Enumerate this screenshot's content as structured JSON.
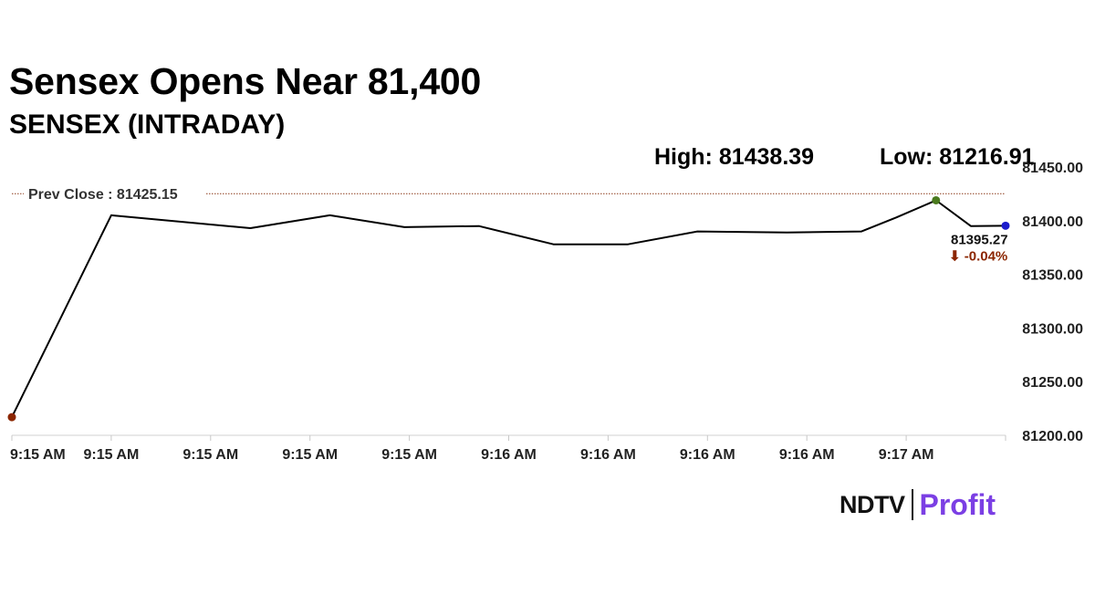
{
  "headline": "Sensex Opens Near 81,400",
  "subheadline": "SENSEX (INTRADAY)",
  "stats": {
    "high": "High: 81438.39",
    "low": "Low: 81216.91"
  },
  "colors": {
    "line": "#000000",
    "prev_close_line": "#8b3a1a",
    "open_marker": "#8b2500",
    "high_marker": "#4a7a1e",
    "last_marker": "#1c1ccc",
    "change_negative": "#8b2500",
    "brand_profit": "#7b3fe4"
  },
  "logo": {
    "ndtv": "NDTV",
    "profit": "Profit"
  },
  "chart_data": {
    "type": "line",
    "title": "SENSEX (INTRADAY)",
    "xlabel": "",
    "ylabel": "",
    "x_tick_labels": [
      "9:15 AM",
      "9:15 AM",
      "9:15 AM",
      "9:15 AM",
      "9:15 AM",
      "9:16 AM",
      "9:16 AM",
      "9:16 AM",
      "9:16 AM",
      "9:17 AM"
    ],
    "y_ticks": [
      "81450.00",
      "81400.00",
      "81350.00",
      "81300.00",
      "81250.00",
      "81200.00"
    ],
    "y_tick_values": [
      81450,
      81400,
      81350,
      81300,
      81250,
      81200
    ],
    "ylim": [
      81200,
      81450
    ],
    "grid": false,
    "prev_close": {
      "label": "Prev Close : 81425.15",
      "value": 81425.15
    },
    "series": [
      {
        "points": [
          {
            "x": 0.0,
            "y": 81216.91
          },
          {
            "x": 1.0,
            "y": 81405
          },
          {
            "x": 2.4,
            "y": 81393
          },
          {
            "x": 3.2,
            "y": 81405
          },
          {
            "x": 3.95,
            "y": 81394
          },
          {
            "x": 4.7,
            "y": 81395
          },
          {
            "x": 5.45,
            "y": 81378
          },
          {
            "x": 6.2,
            "y": 81378
          },
          {
            "x": 6.9,
            "y": 81390
          },
          {
            "x": 7.8,
            "y": 81389
          },
          {
            "x": 8.55,
            "y": 81390
          },
          {
            "x": 8.9,
            "y": 81403
          },
          {
            "x": 9.3,
            "y": 81419
          },
          {
            "x": 9.65,
            "y": 81395
          },
          {
            "x": 10.0,
            "y": 81395.27
          }
        ]
      }
    ],
    "last_value": {
      "value_label": "81395.27",
      "change_label": "⬇ -0.04%",
      "value": 81395.27
    }
  }
}
